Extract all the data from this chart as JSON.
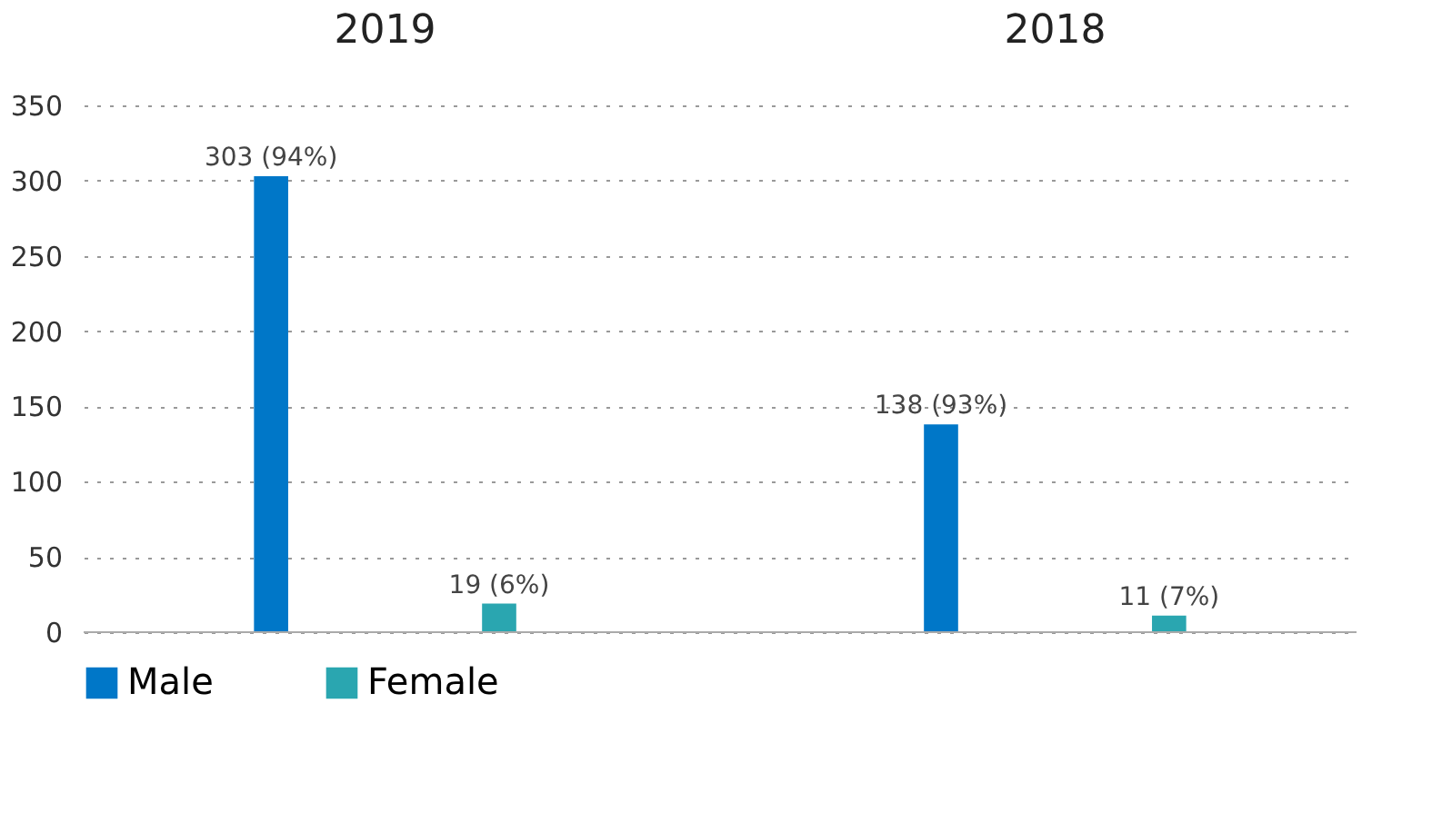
{
  "chart_data": {
    "type": "bar",
    "categories": [
      "2019",
      "2018"
    ],
    "series": [
      {
        "name": "Male",
        "color": "#0077c8",
        "values": [
          303,
          138
        ],
        "value_labels": [
          "303 (94%)",
          "138 (93%)"
        ]
      },
      {
        "name": "Female",
        "color": "#2aa6b0",
        "values": [
          19,
          11
        ],
        "value_labels": [
          "19 (6%)",
          "11 (7%)"
        ]
      }
    ],
    "ylim": [
      0,
      350
    ],
    "yticks": [
      0,
      50,
      100,
      150,
      200,
      250,
      300,
      350
    ],
    "grid": "y",
    "legend": "bottom"
  }
}
